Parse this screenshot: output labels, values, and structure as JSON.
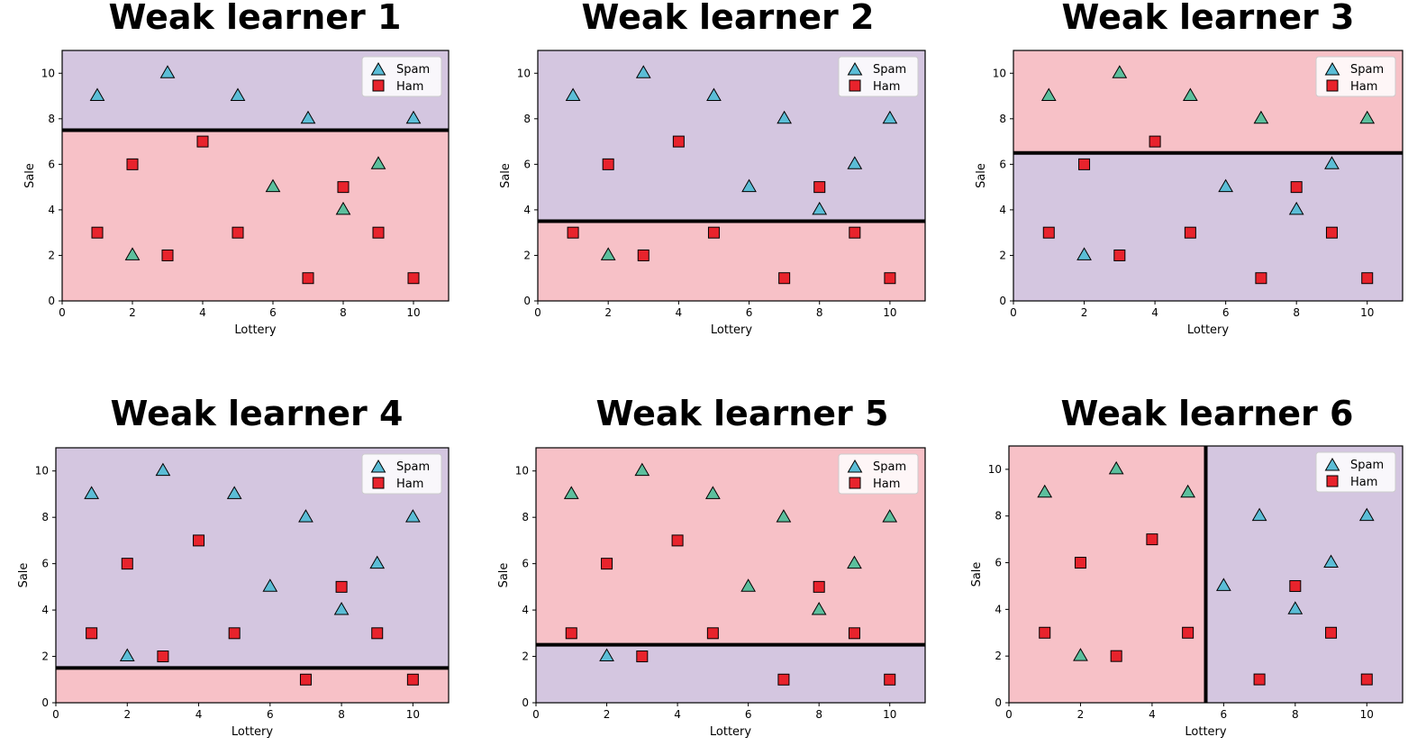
{
  "colors": {
    "spam_region": "#d4c6e0",
    "ham_region": "#f7c1c7",
    "spam_triangle_blue": "#5bbdd6",
    "spam_triangle_green": "#5cbf9d",
    "ham_square": "#e8232c",
    "boundary": "#000000"
  },
  "legend": {
    "spam": "Spam",
    "ham": "Ham"
  },
  "chart_data": [
    {
      "type": "scatter",
      "title": "Weak learner 1",
      "xlabel": "Lottery",
      "ylabel": "Sale",
      "xlim": [
        0,
        11
      ],
      "ylim": [
        0,
        11
      ],
      "xticks": [
        0,
        2,
        4,
        6,
        8,
        10
      ],
      "yticks": [
        0,
        2,
        4,
        6,
        8,
        10
      ],
      "legend_position": "top-right",
      "boundary": {
        "orientation": "horizontal",
        "value": 7.5,
        "above": "Spam",
        "below": "Ham"
      },
      "series": [
        {
          "name": "Spam",
          "marker": "triangle",
          "points": [
            [
              1,
              9
            ],
            [
              3,
              10
            ],
            [
              5,
              9
            ],
            [
              7,
              8
            ],
            [
              10,
              8
            ],
            [
              2,
              2
            ],
            [
              6,
              5
            ],
            [
              8,
              4
            ],
            [
              9,
              6
            ]
          ]
        },
        {
          "name": "Ham",
          "marker": "square",
          "points": [
            [
              2,
              6
            ],
            [
              4,
              7
            ],
            [
              1,
              3
            ],
            [
              3,
              2
            ],
            [
              5,
              3
            ],
            [
              7,
              1
            ],
            [
              8,
              5
            ],
            [
              9,
              3
            ],
            [
              10,
              1
            ]
          ]
        }
      ]
    },
    {
      "type": "scatter",
      "title": "Weak learner 2",
      "xlabel": "Lottery",
      "ylabel": "Sale",
      "xlim": [
        0,
        11
      ],
      "ylim": [
        0,
        11
      ],
      "xticks": [
        0,
        2,
        4,
        6,
        8,
        10
      ],
      "yticks": [
        0,
        2,
        4,
        6,
        8,
        10
      ],
      "legend_position": "top-right",
      "boundary": {
        "orientation": "horizontal",
        "value": 3.5,
        "above": "Spam",
        "below": "Ham"
      },
      "series": [
        {
          "name": "Spam",
          "marker": "triangle",
          "points": [
            [
              1,
              9
            ],
            [
              3,
              10
            ],
            [
              5,
              9
            ],
            [
              7,
              8
            ],
            [
              10,
              8
            ],
            [
              6,
              5
            ],
            [
              8,
              4
            ],
            [
              9,
              6
            ],
            [
              2,
              2
            ]
          ]
        },
        {
          "name": "Ham",
          "marker": "square",
          "points": [
            [
              2,
              6
            ],
            [
              4,
              7
            ],
            [
              8,
              5
            ],
            [
              1,
              3
            ],
            [
              3,
              2
            ],
            [
              5,
              3
            ],
            [
              7,
              1
            ],
            [
              9,
              3
            ],
            [
              10,
              1
            ]
          ]
        }
      ]
    },
    {
      "type": "scatter",
      "title": "Weak learner 3",
      "xlabel": "Lottery",
      "ylabel": "Sale",
      "xlim": [
        0,
        11
      ],
      "ylim": [
        0,
        11
      ],
      "xticks": [
        0,
        2,
        4,
        6,
        8,
        10
      ],
      "yticks": [
        0,
        2,
        4,
        6,
        8,
        10
      ],
      "legend_position": "top-right",
      "boundary": {
        "orientation": "horizontal",
        "value": 6.5,
        "above": "Ham",
        "below": "Spam"
      },
      "series": [
        {
          "name": "Spam",
          "marker": "triangle",
          "points": [
            [
              1,
              9
            ],
            [
              3,
              10
            ],
            [
              5,
              9
            ],
            [
              7,
              8
            ],
            [
              10,
              8
            ],
            [
              9,
              6
            ],
            [
              6,
              5
            ],
            [
              8,
              4
            ],
            [
              2,
              2
            ]
          ]
        },
        {
          "name": "Ham",
          "marker": "square",
          "points": [
            [
              4,
              7
            ],
            [
              2,
              6
            ],
            [
              8,
              5
            ],
            [
              1,
              3
            ],
            [
              3,
              2
            ],
            [
              5,
              3
            ],
            [
              9,
              3
            ],
            [
              7,
              1
            ],
            [
              10,
              1
            ]
          ]
        }
      ]
    },
    {
      "type": "scatter",
      "title": "Weak learner 4",
      "xlabel": "Lottery",
      "ylabel": "Sale",
      "xlim": [
        0,
        11
      ],
      "ylim": [
        0,
        11
      ],
      "xticks": [
        0,
        2,
        4,
        6,
        8,
        10
      ],
      "yticks": [
        0,
        2,
        4,
        6,
        8,
        10
      ],
      "legend_position": "top-right",
      "boundary": {
        "orientation": "horizontal",
        "value": 1.5,
        "above": "Spam",
        "below": "Ham"
      },
      "series": [
        {
          "name": "Spam",
          "marker": "triangle",
          "points": [
            [
              1,
              9
            ],
            [
              3,
              10
            ],
            [
              5,
              9
            ],
            [
              7,
              8
            ],
            [
              10,
              8
            ],
            [
              9,
              6
            ],
            [
              6,
              5
            ],
            [
              8,
              4
            ],
            [
              2,
              2
            ]
          ]
        },
        {
          "name": "Ham",
          "marker": "square",
          "points": [
            [
              4,
              7
            ],
            [
              2,
              6
            ],
            [
              8,
              5
            ],
            [
              1,
              3
            ],
            [
              5,
              3
            ],
            [
              9,
              3
            ],
            [
              3,
              2
            ],
            [
              7,
              1
            ],
            [
              10,
              1
            ]
          ]
        }
      ]
    },
    {
      "type": "scatter",
      "title": "Weak learner 5",
      "xlabel": "Lottery",
      "ylabel": "Sale",
      "xlim": [
        0,
        11
      ],
      "ylim": [
        0,
        11
      ],
      "xticks": [
        0,
        2,
        4,
        6,
        8,
        10
      ],
      "yticks": [
        0,
        2,
        4,
        6,
        8,
        10
      ],
      "legend_position": "top-right",
      "boundary": {
        "orientation": "horizontal",
        "value": 2.5,
        "above": "Ham",
        "below": "Spam"
      },
      "series": [
        {
          "name": "Spam",
          "marker": "triangle",
          "points": [
            [
              1,
              9
            ],
            [
              3,
              10
            ],
            [
              5,
              9
            ],
            [
              7,
              8
            ],
            [
              10,
              8
            ],
            [
              9,
              6
            ],
            [
              6,
              5
            ],
            [
              8,
              4
            ],
            [
              2,
              2
            ]
          ]
        },
        {
          "name": "Ham",
          "marker": "square",
          "points": [
            [
              4,
              7
            ],
            [
              2,
              6
            ],
            [
              8,
              5
            ],
            [
              1,
              3
            ],
            [
              5,
              3
            ],
            [
              9,
              3
            ],
            [
              3,
              2
            ],
            [
              7,
              1
            ],
            [
              10,
              1
            ]
          ]
        }
      ]
    },
    {
      "type": "scatter",
      "title": "Weak learner 6",
      "xlabel": "Lottery",
      "ylabel": "Sale",
      "xlim": [
        0,
        11
      ],
      "ylim": [
        0,
        11
      ],
      "xticks": [
        0,
        2,
        4,
        6,
        8,
        10
      ],
      "yticks": [
        0,
        2,
        4,
        6,
        8,
        10
      ],
      "legend_position": "top-right",
      "boundary": {
        "orientation": "vertical",
        "value": 5.5,
        "left": "Ham",
        "right": "Spam"
      },
      "series": [
        {
          "name": "Spam",
          "marker": "triangle",
          "points": [
            [
              1,
              9
            ],
            [
              3,
              10
            ],
            [
              5,
              9
            ],
            [
              2,
              2
            ],
            [
              7,
              8
            ],
            [
              10,
              8
            ],
            [
              9,
              6
            ],
            [
              6,
              5
            ],
            [
              8,
              4
            ]
          ]
        },
        {
          "name": "Ham",
          "marker": "square",
          "points": [
            [
              4,
              7
            ],
            [
              2,
              6
            ],
            [
              1,
              3
            ],
            [
              5,
              3
            ],
            [
              3,
              2
            ],
            [
              8,
              5
            ],
            [
              9,
              3
            ],
            [
              7,
              1
            ],
            [
              10,
              1
            ]
          ]
        }
      ]
    }
  ]
}
